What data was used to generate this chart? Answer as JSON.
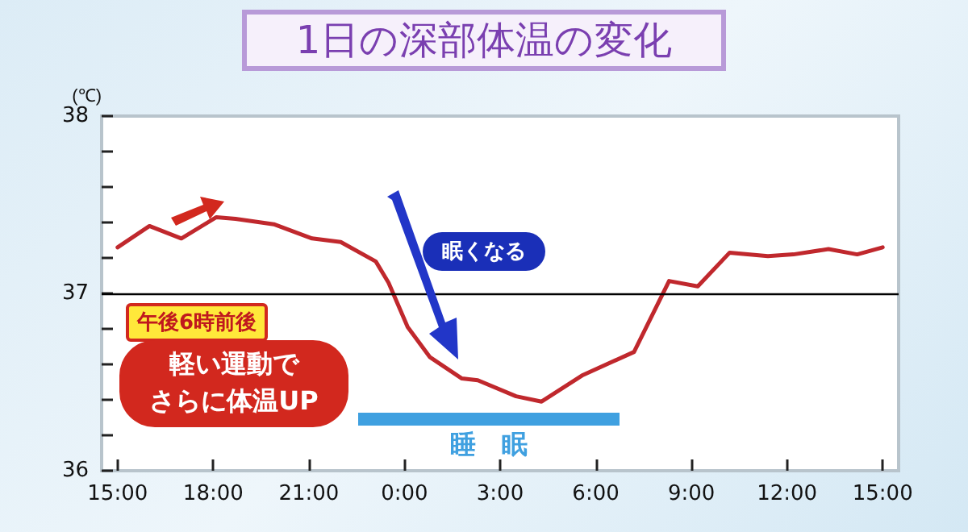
{
  "chart_data": {
    "type": "line",
    "title": "1日の深部体温の変化",
    "ylabel": "(℃)",
    "x": [
      "--01-01T15:00",
      "--01-01T16:00",
      "--01-01T17:00",
      "--01-01T18:06",
      "--01-01T18:42",
      "--01-01T19:54",
      "--01-01T21:06",
      "--01-01T22:00",
      "--01-01T23:06",
      "--01-01T23:30",
      "--01-02T00:06",
      "--01-02T00:48",
      "--01-02T01:48",
      "--01-02T02:18",
      "--01-02T03:30",
      "--01-02T04:18",
      "--01-02T05:36",
      "--01-02T07:12",
      "--01-02T08:18",
      "--01-02T09:12",
      "--01-02T10:12",
      "--01-02T11:24",
      "--01-02T12:12",
      "--01-02T13:18",
      "--01-02T14:12",
      "--01-02T15:00"
    ],
    "series": [
      {
        "color": "#c0282d",
        "values": [
          37.26,
          37.38,
          37.31,
          37.43,
          37.42,
          37.39,
          37.31,
          37.29,
          37.18,
          37.06,
          36.81,
          36.64,
          36.52,
          36.51,
          36.42,
          36.39,
          36.54,
          36.67,
          37.07,
          37.04,
          37.23,
          37.21,
          37.22,
          37.25,
          37.22,
          37.26
        ]
      }
    ],
    "xlim": [
      "--01-01T14:30",
      "--01-02T15:30"
    ],
    "xticks": [
      {
        "value": "--01-01T15:00",
        "label": "15:00"
      },
      {
        "value": "--01-01T18:00",
        "label": "18:00"
      },
      {
        "value": "--01-01T21:00",
        "label": "21:00"
      },
      {
        "value": "--01-02T00:00",
        "label": "0:00"
      },
      {
        "value": "--01-02T03:00",
        "label": "3:00"
      },
      {
        "value": "--01-02T06:00",
        "label": "6:00"
      },
      {
        "value": "--01-02T09:00",
        "label": "9:00"
      },
      {
        "value": "--01-02T12:00",
        "label": "12:00"
      },
      {
        "value": "--01-02T15:00",
        "label": "15:00"
      }
    ],
    "ylim": [
      36,
      38
    ],
    "yticks": [
      36,
      {
        "value": 36.2,
        "label": null
      },
      {
        "value": 36.4,
        "label": null
      },
      {
        "value": 36.6,
        "label": null
      },
      {
        "value": 36.8,
        "label": null
      },
      37,
      {
        "value": 37.2,
        "label": null
      },
      {
        "value": 37.4,
        "label": null
      },
      {
        "value": 37.6,
        "label": null
      },
      {
        "value": 37.8,
        "label": null
      },
      38
    ],
    "ref_lines": [
      {
        "axis": "y",
        "value": 37,
        "color": "#000000"
      }
    ],
    "annotations": [
      "午後6時前後",
      "軽い運動で",
      "さらに体温UP",
      "眠くなる",
      "睡　眠"
    ],
    "grid": false
  }
}
